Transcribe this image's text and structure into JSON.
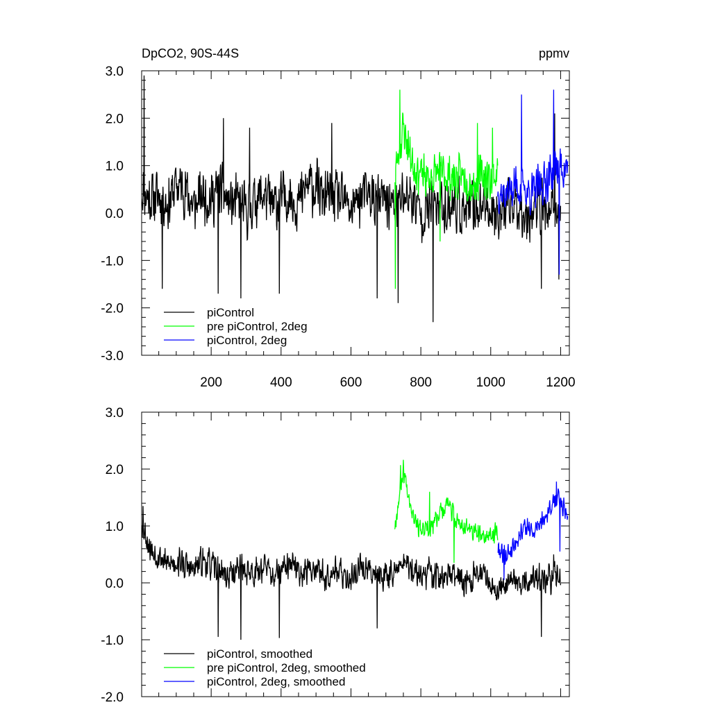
{
  "figure": {
    "title_left": "DpCO2, 90S-44S",
    "title_right": "ppmv"
  },
  "chart_data": [
    {
      "type": "line",
      "panel": "top",
      "title_left": "DpCO2, 90S-44S",
      "title_right": "ppmv",
      "xlim": [
        1,
        1225
      ],
      "ylim": [
        -3.0,
        3.0
      ],
      "x_ticks": [
        200,
        400,
        600,
        800,
        1000,
        1200
      ],
      "x_tick_labels": [
        "200",
        "400",
        "600",
        "800",
        "1000",
        "1200"
      ],
      "y_ticks": [
        -3.0,
        -2.0,
        -1.0,
        0.0,
        1.0,
        2.0,
        3.0
      ],
      "y_tick_labels": [
        "-3.0",
        "-2.0",
        "-1.0",
        "0.0",
        "1.0",
        "2.0",
        "3.0"
      ],
      "legend_position": "bottom-left",
      "series": [
        {
          "name": "piControl",
          "color": "#000000",
          "x_start": 1,
          "x_end": 1200,
          "step": 25,
          "values": [
            0.5,
            0.3,
            0.4,
            0.2,
            0.6,
            0.5,
            0.1,
            0.4,
            0.3,
            0.5,
            0.2,
            0.2,
            0.0,
            0.3,
            0.4,
            0.1,
            0.3,
            0.4,
            0.2,
            0.6,
            0.5,
            0.3,
            0.4,
            0.2,
            0.1,
            0.3,
            0.4,
            0.2,
            0.3,
            0.1,
            0.4,
            0.3,
            0.0,
            0.1,
            0.2,
            0.1,
            0.2,
            0.0,
            0.1,
            0.2,
            0.1,
            0.0,
            0.1,
            0.2,
            0.0,
            0.1,
            0.1,
            0.0,
            0.1
          ],
          "noise_amplitude": 0.7,
          "noise_seed": 11,
          "spikes": [
            [
              8,
              2.9
            ],
            [
              60,
              -1.6
            ],
            [
              220,
              -1.7
            ],
            [
              285,
              -1.8
            ],
            [
              395,
              -1.7
            ],
            [
              675,
              -1.8
            ],
            [
              735,
              -1.9
            ],
            [
              835,
              -2.3
            ],
            [
              1145,
              -1.6
            ],
            [
              1195,
              -1.4
            ],
            [
              235,
              2.0
            ],
            [
              310,
              1.8
            ],
            [
              545,
              1.9
            ],
            [
              1183,
              2.1
            ]
          ]
        },
        {
          "name": "pre piControl, 2deg",
          "color": "#00ff00",
          "x_start": 725,
          "x_end": 1020,
          "step": 25,
          "values": [
            0.8,
            1.8,
            1.1,
            0.8,
            0.7,
            0.9,
            0.8,
            0.7,
            0.8,
            0.6,
            0.8,
            0.7,
            0.9
          ],
          "noise_amplitude": 0.55,
          "noise_seed": 23,
          "spikes": [
            [
              727,
              -1.6
            ],
            [
              740,
              2.6
            ],
            [
              855,
              -0.6
            ],
            [
              962,
              1.9
            ],
            [
              1005,
              1.8
            ]
          ]
        },
        {
          "name": "piControl, 2deg",
          "color": "#0000ff",
          "x_start": 1020,
          "x_end": 1220,
          "step": 25,
          "values": [
            0.5,
            0.4,
            0.6,
            0.5,
            0.4,
            0.6,
            0.8,
            1.0,
            0.9
          ],
          "noise_amplitude": 0.55,
          "noise_seed": 37,
          "spikes": [
            [
              1088,
              2.5
            ],
            [
              1180,
              2.6
            ],
            [
              1196,
              -1.3
            ]
          ]
        }
      ]
    },
    {
      "type": "line",
      "panel": "bottom",
      "xlim": [
        1,
        1225
      ],
      "ylim": [
        -2.0,
        3.0
      ],
      "x_ticks": [
        200,
        400,
        600,
        800,
        1000,
        1200
      ],
      "y_ticks": [
        -2.0,
        -1.0,
        0.0,
        1.0,
        2.0,
        3.0
      ],
      "y_tick_labels": [
        "-2.0",
        "-1.0",
        "0.0",
        "1.0",
        "2.0",
        "3.0"
      ],
      "legend_position": "bottom-left",
      "series": [
        {
          "name": "piControl, smoothed",
          "color": "#000000",
          "x_start": 1,
          "x_end": 1200,
          "step": 25,
          "values": [
            1.1,
            0.6,
            0.5,
            0.3,
            0.4,
            0.3,
            0.2,
            0.4,
            0.3,
            0.2,
            0.1,
            0.3,
            0.2,
            0.2,
            0.3,
            0.1,
            0.2,
            0.3,
            0.2,
            0.2,
            0.3,
            0.1,
            0.3,
            0.1,
            0.1,
            0.3,
            0.2,
            0.2,
            0.1,
            0.2,
            0.4,
            0.2,
            0.1,
            0.2,
            0.1,
            0.1,
            0.1,
            0.0,
            0.1,
            0.2,
            0.0,
            -0.1,
            0.1,
            0.0,
            0.0,
            0.1,
            0.0,
            0.1,
            0.1
          ],
          "noise_amplitude": 0.32,
          "noise_seed": 53,
          "spikes": [
            [
              5,
              1.35
            ],
            [
              220,
              -0.95
            ],
            [
              285,
              -1.0
            ],
            [
              395,
              -0.97
            ],
            [
              675,
              -0.8
            ],
            [
              1145,
              -0.95
            ],
            [
              1180,
              0.5
            ]
          ]
        },
        {
          "name": "pre piControl, 2deg, smoothed",
          "color": "#00ff00",
          "x_start": 725,
          "x_end": 1020,
          "step": 25,
          "values": [
            1.0,
            2.0,
            1.3,
            0.9,
            0.9,
            1.2,
            1.4,
            1.1,
            1.0,
            0.9,
            0.8,
            0.8,
            1.0
          ],
          "noise_amplitude": 0.22,
          "noise_seed": 67,
          "spikes": [
            [
              742,
              2.07
            ],
            [
              825,
              1.6
            ],
            [
              895,
              0.35
            ]
          ]
        },
        {
          "name": "piControl, 2deg, smoothed",
          "color": "#0000ff",
          "x_start": 1020,
          "x_end": 1220,
          "step": 25,
          "values": [
            0.6,
            0.5,
            0.7,
            1.0,
            0.9,
            1.1,
            1.3,
            1.5,
            1.2
          ],
          "noise_amplitude": 0.22,
          "noise_seed": 79,
          "spikes": [
            [
              1038,
              0.05
            ],
            [
              1188,
              1.78
            ],
            [
              1198,
              0.55
            ]
          ]
        }
      ]
    }
  ]
}
